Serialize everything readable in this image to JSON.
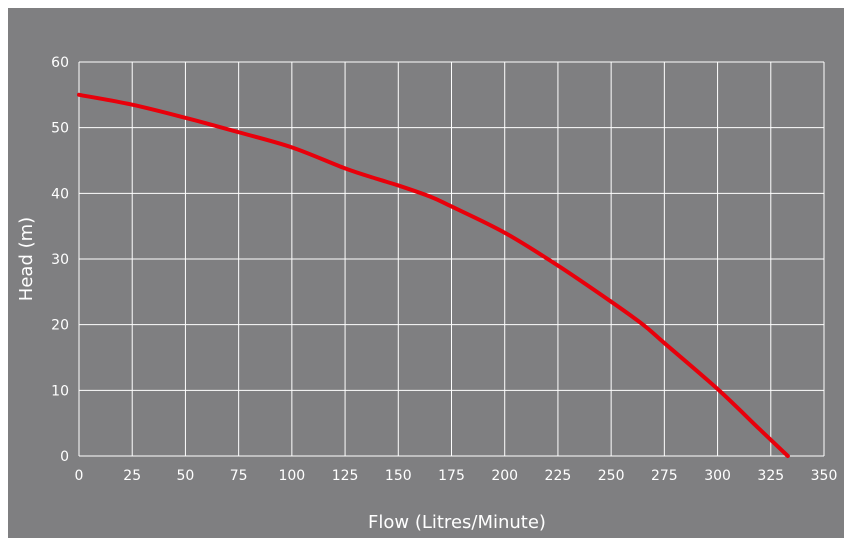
{
  "chart_data": {
    "type": "line",
    "title": "",
    "xlabel": "Flow (Litres/Minute)",
    "ylabel": "Head (m)",
    "xlim": [
      0,
      350
    ],
    "ylim": [
      0,
      60
    ],
    "x_ticks": [
      0,
      25,
      50,
      75,
      100,
      125,
      150,
      175,
      200,
      225,
      250,
      275,
      300,
      325,
      350
    ],
    "y_ticks": [
      0,
      10,
      20,
      30,
      40,
      50,
      60
    ],
    "grid": true,
    "series": [
      {
        "color": "#e8000b",
        "x": [
          0,
          25,
          50,
          75,
          100,
          125,
          140,
          150,
          165,
          175,
          200,
          225,
          250,
          265,
          275,
          300,
          320,
          333
        ],
        "y": [
          55,
          53.5,
          51.5,
          49.3,
          47,
          43.8,
          42.2,
          41.2,
          39.5,
          38,
          34,
          29,
          23.5,
          20,
          17.2,
          10.2,
          4,
          0
        ]
      }
    ]
  },
  "colors": {
    "background": "#7f7f81",
    "grid": "#ffffff",
    "text": "#ffffff",
    "line": "#e8000b"
  }
}
